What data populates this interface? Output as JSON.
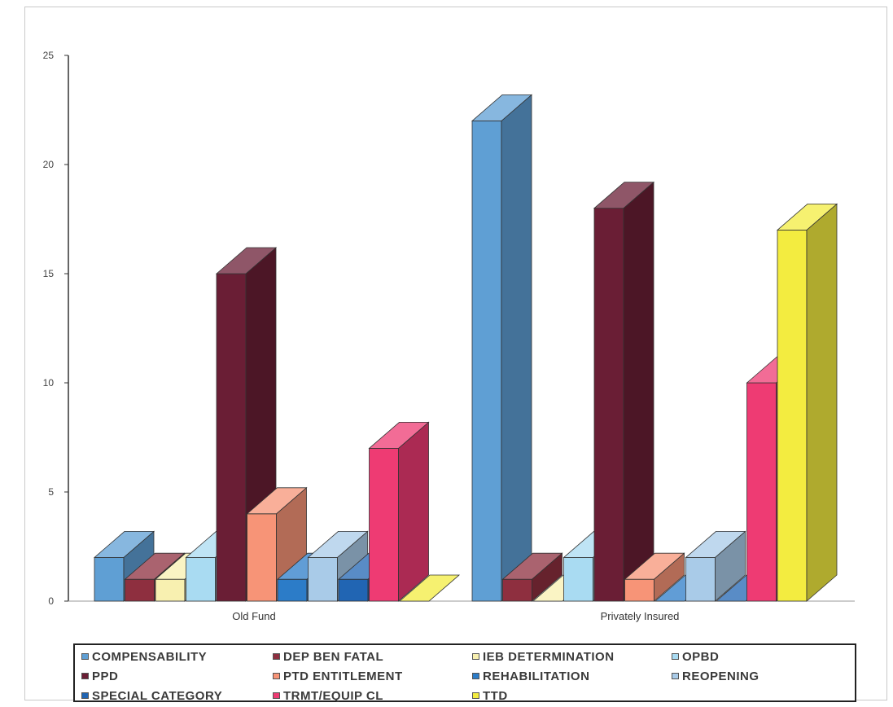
{
  "chart_data": {
    "type": "bar",
    "style": "3d-clustered-column",
    "categories": [
      "Old Fund",
      "Privately Insured"
    ],
    "ylim": [
      0,
      25
    ],
    "yticks": [
      "0",
      "5",
      "10",
      "15",
      "20",
      "25"
    ],
    "grid": false,
    "legend_position": "bottom",
    "series": [
      {
        "name": "COMPENSABILITY",
        "color": "#5f9fd4",
        "values": [
          2,
          22
        ]
      },
      {
        "name": "DEP BEN FATAL",
        "color": "#8e2f3f",
        "values": [
          1,
          1
        ]
      },
      {
        "name": "IEB DETERMINATION",
        "color": "#f8f0b0",
        "values": [
          1,
          0
        ]
      },
      {
        "name": "OPBD",
        "color": "#a9dbf2",
        "values": [
          2,
          2
        ]
      },
      {
        "name": "PPD",
        "color": "#6a1e35",
        "values": [
          15,
          18
        ]
      },
      {
        "name": "PTD ENTITLEMENT",
        "color": "#f79477",
        "values": [
          4,
          1
        ]
      },
      {
        "name": "REHABILITATION",
        "color": "#2c7cc8",
        "values": [
          1,
          0
        ]
      },
      {
        "name": "REOPENING",
        "color": "#a9cbe8",
        "values": [
          2,
          2
        ]
      },
      {
        "name": "SPECIAL CATEGORY",
        "color": "#2165b3",
        "values": [
          1,
          0
        ]
      },
      {
        "name": "TRMT/EQUIP CL",
        "color": "#ee3b73",
        "values": [
          7,
          10
        ]
      },
      {
        "name": "TTD",
        "color": "#f3ec40",
        "values": [
          0,
          17
        ]
      }
    ]
  }
}
